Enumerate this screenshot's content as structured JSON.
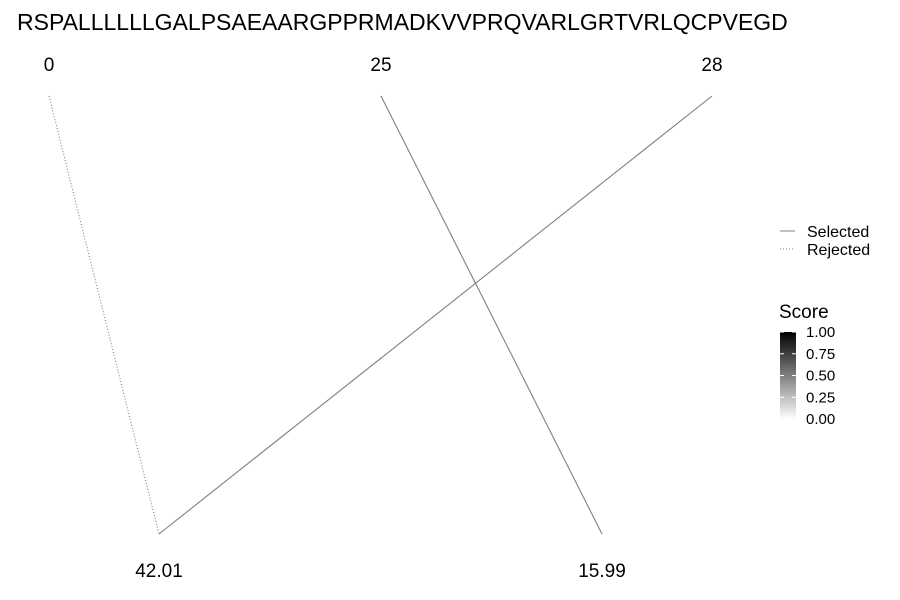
{
  "chart_data": {
    "type": "line",
    "title": "RSPALLLLLLGALPSAEAARGPPRMADKVVPRQVARLGRTVRLQCPVEGD",
    "top_axis": {
      "labels": [
        "0",
        "25",
        "28"
      ],
      "values": [
        0,
        25,
        28
      ]
    },
    "bottom_axis": {
      "labels": [
        "42.01",
        "15.99"
      ],
      "values": [
        42.01,
        15.99
      ]
    },
    "series": [
      {
        "name": "Selected",
        "from": 25,
        "to": 15.99,
        "status": "selected",
        "score": 0.5
      },
      {
        "name": "Selected",
        "from": 28,
        "to": 42.01,
        "status": "selected",
        "score": 0.5
      },
      {
        "name": "Rejected",
        "from": 0,
        "to": 42.01,
        "status": "rejected",
        "score": 0.5
      }
    ],
    "legend": {
      "placement": "right",
      "linetype": [
        {
          "label": "Selected",
          "style": "solid"
        },
        {
          "label": "Rejected",
          "style": "dotted"
        }
      ],
      "score": {
        "title": "Score",
        "ticks": [
          "1.00",
          "0.75",
          "0.50",
          "0.25",
          "0.00"
        ],
        "range": [
          0,
          1
        ],
        "color_low": "#ffffff",
        "color_high": "#000000"
      }
    },
    "line_color": "#7f7f7f",
    "grid": false
  }
}
